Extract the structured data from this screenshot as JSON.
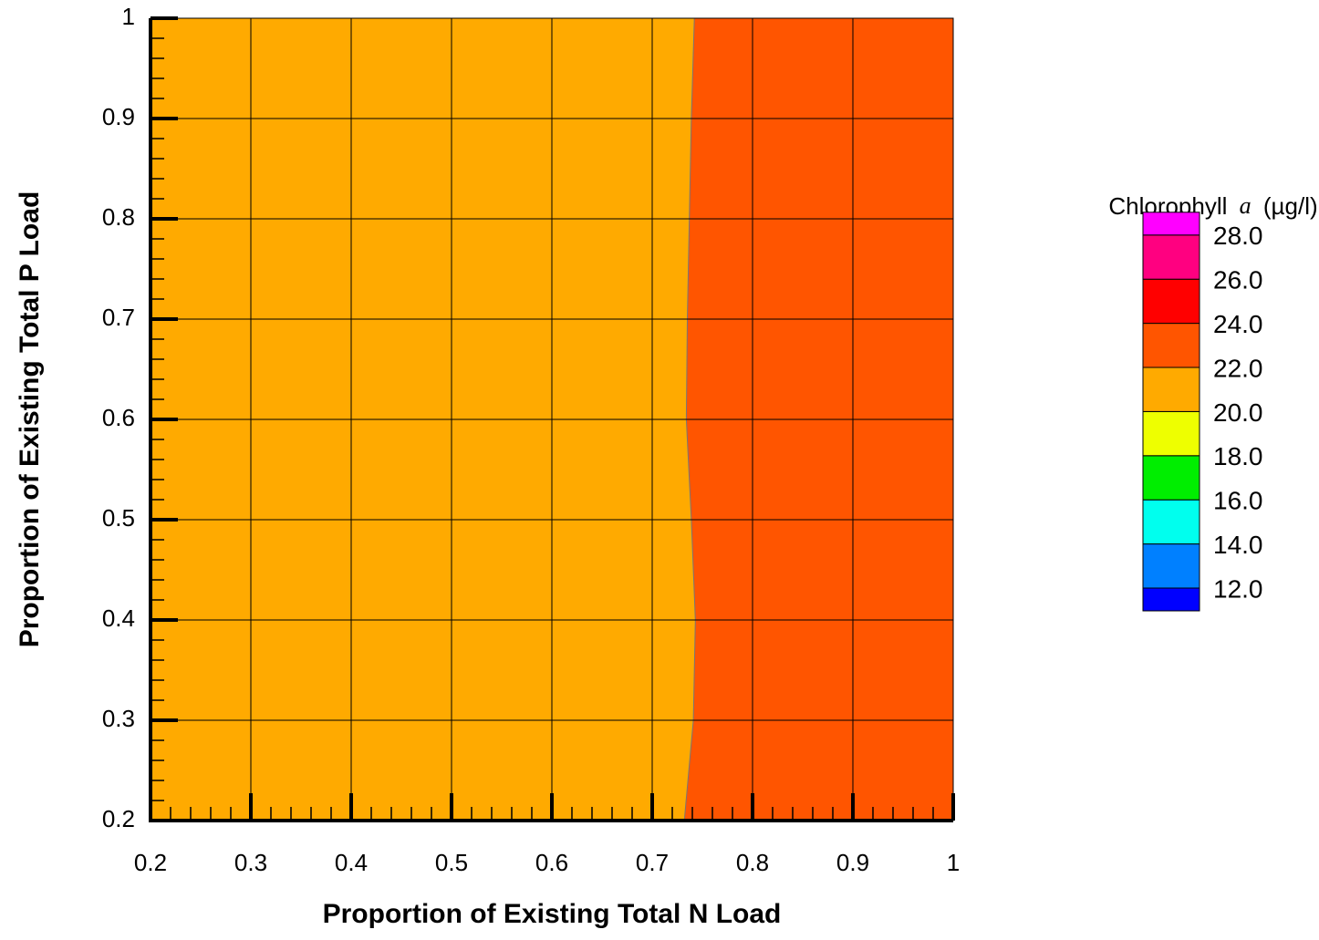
{
  "chart_data": {
    "type": "contour",
    "xlabel": "Proportion of Existing Total N Load",
    "ylabel": "Proportion of Existing Total P Load",
    "xlim": [
      0.2,
      1
    ],
    "ylim": [
      0.2,
      1
    ],
    "xticks": [
      0.2,
      0.3,
      0.4,
      0.5,
      0.6,
      0.7,
      0.8,
      0.9,
      1
    ],
    "yticks": [
      0.2,
      0.3,
      0.4,
      0.5,
      0.6,
      0.7,
      0.8,
      0.9,
      1
    ],
    "grid": true,
    "boundary": {
      "x": [
        0.732,
        0.741,
        0.743,
        0.739,
        0.734,
        0.735,
        0.737,
        0.739,
        0.742
      ],
      "y": [
        0.2,
        0.3,
        0.4,
        0.5,
        0.6,
        0.7,
        0.8,
        0.9,
        1
      ]
    },
    "fill_colors": [
      "#ffaa00",
      "#ff5500"
    ],
    "legend": {
      "title": [
        "Chlorophyll",
        "a",
        "(µg/l)"
      ],
      "levels": [
        {
          "value": 12,
          "label": "12.0"
        },
        {
          "value": 14,
          "label": "14.0"
        },
        {
          "value": 16,
          "label": "16.0"
        },
        {
          "value": 18,
          "label": "18.0"
        },
        {
          "value": 20,
          "label": "20.0"
        },
        {
          "value": 22,
          "label": "22.0"
        },
        {
          "value": 24,
          "label": "24.0"
        },
        {
          "value": 26,
          "label": "26.0"
        },
        {
          "value": 28,
          "label": "28.0"
        }
      ],
      "colors": [
        "#0000ff",
        "#0080ff",
        "#00ffee",
        "#00ee00",
        "#eeff00",
        "#ffaa00",
        "#ff5500",
        "#ff0000",
        "#ff0080",
        "#ff00ff"
      ]
    }
  }
}
